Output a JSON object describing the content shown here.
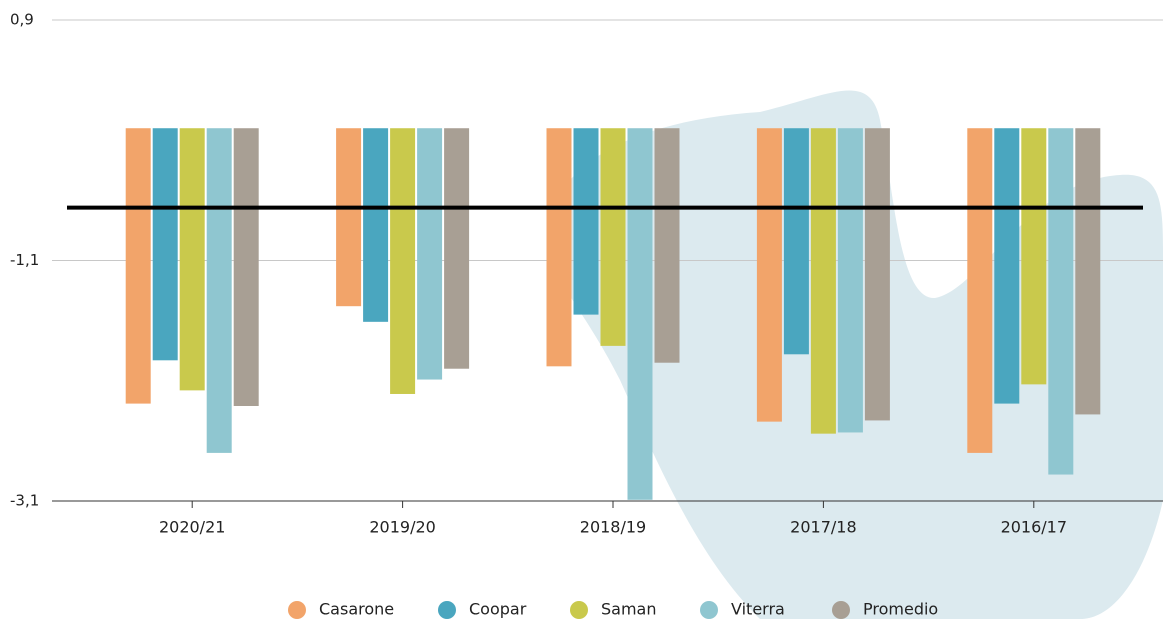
{
  "chart_data": {
    "type": "bar",
    "categories": [
      "2020/21",
      "2019/20",
      "2018/19",
      "2017/18",
      "2016/17"
    ],
    "series": [
      {
        "name": "Casarone",
        "color": "#f2a46a",
        "values": [
          -2.29,
          -1.48,
          -1.98,
          -2.44,
          -2.7
        ]
      },
      {
        "name": "Coopar",
        "color": "#4aa6bf",
        "values": [
          -1.93,
          -1.61,
          -1.55,
          -1.88,
          -2.29
        ]
      },
      {
        "name": "Saman",
        "color": "#c9c94c",
        "values": [
          -2.18,
          -2.21,
          -1.81,
          -2.54,
          -2.13
        ]
      },
      {
        "name": "Viterra",
        "color": "#8fc6d0",
        "values": [
          -2.7,
          -2.09,
          -3.09,
          -2.53,
          -2.88
        ]
      },
      {
        "name": "Promedio",
        "color": "#a89f94",
        "values": [
          -2.31,
          -2.0,
          -1.95,
          -2.43,
          -2.38
        ]
      }
    ],
    "reference_line": -0.66,
    "ylim": [
      -3.1,
      0.9
    ],
    "yticks": [
      {
        "value": 0.9,
        "label": "0,9"
      },
      {
        "value": -1.1,
        "label": "-1,1"
      },
      {
        "value": -3.1,
        "label": "-3,1"
      }
    ],
    "grid": true
  }
}
